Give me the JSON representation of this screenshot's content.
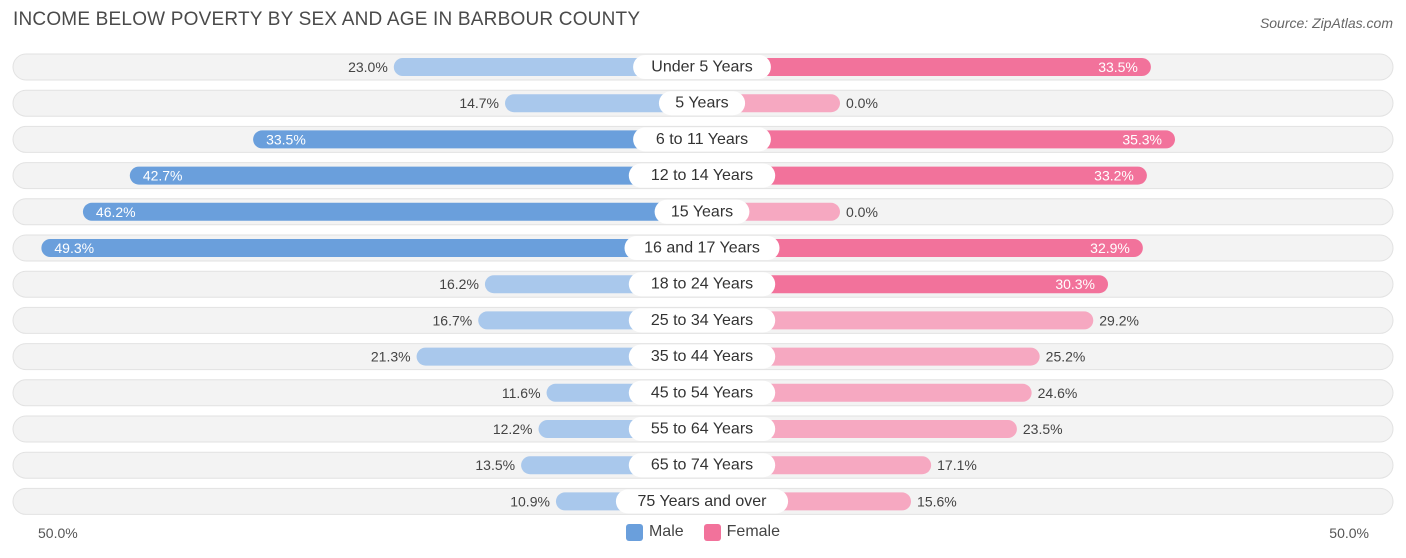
{
  "header": {
    "title": "INCOME BELOW POVERTY BY SEX AND AGE IN BARBOUR COUNTY",
    "source": "Source: ZipAtlas.com"
  },
  "axis": {
    "left_label": "50.0%",
    "right_label": "50.0%"
  },
  "legend": {
    "male_label": "Male",
    "female_label": "Female"
  },
  "colors": {
    "male_strong": "#6a9fdc",
    "male_light": "#a9c8ec",
    "female_strong": "#f2729b",
    "female_light": "#f6a8c1",
    "row_bg": "#f3f3f3",
    "row_border": "#e2e2e2"
  },
  "chart_data": {
    "type": "bar",
    "orientation": "horizontal-diverging",
    "categories": [
      "Under 5 Years",
      "5 Years",
      "6 to 11 Years",
      "12 to 14 Years",
      "15 Years",
      "16 and 17 Years",
      "18 to 24 Years",
      "25 to 34 Years",
      "35 to 44 Years",
      "45 to 54 Years",
      "55 to 64 Years",
      "65 to 74 Years",
      "75 Years and over"
    ],
    "series": [
      {
        "name": "Male",
        "values": [
          23.0,
          14.7,
          33.5,
          42.7,
          46.2,
          49.3,
          16.2,
          16.7,
          21.3,
          11.6,
          12.2,
          13.5,
          10.9
        ]
      },
      {
        "name": "Female",
        "values": [
          33.5,
          0.0,
          35.3,
          33.2,
          0.0,
          32.9,
          30.3,
          29.2,
          25.2,
          24.6,
          23.5,
          17.1,
          15.6
        ]
      }
    ],
    "labels": {
      "male": [
        "23.0%",
        "14.7%",
        "33.5%",
        "42.7%",
        "46.2%",
        "49.3%",
        "16.2%",
        "16.7%",
        "21.3%",
        "11.6%",
        "12.2%",
        "13.5%",
        "10.9%"
      ],
      "female": [
        "33.5%",
        "0.0%",
        "35.3%",
        "33.2%",
        "0.0%",
        "32.9%",
        "30.3%",
        "29.2%",
        "25.2%",
        "24.6%",
        "23.5%",
        "17.1%",
        "15.6%"
      ]
    },
    "xlim": [
      -50,
      50
    ],
    "legend_position": "bottom-center"
  }
}
